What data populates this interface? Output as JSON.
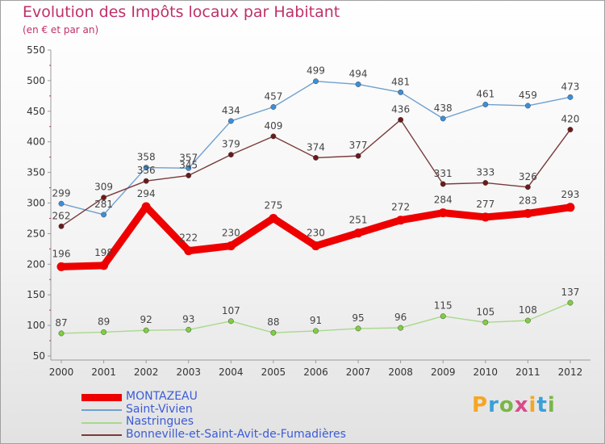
{
  "header": {
    "title": "Evolution des Impôts locaux par Habitant",
    "subtitle": "(en € et par an)"
  },
  "logo": {
    "text": "Proxiti",
    "colors": [
      "#f5a623",
      "#3aa0d8",
      "#7ab648",
      "#d94b8a",
      "#f5a623",
      "#3aa0d8",
      "#7ab648"
    ]
  },
  "chart_data": {
    "type": "line",
    "x": [
      "2000",
      "2001",
      "2002",
      "2003",
      "2004",
      "2005",
      "2006",
      "2007",
      "2008",
      "2009",
      "2010",
      "2011",
      "2012"
    ],
    "ylim": [
      50,
      550
    ],
    "yticks": [
      "50",
      "100",
      "150",
      "200",
      "250",
      "300",
      "350",
      "400",
      "450",
      "500",
      "550"
    ],
    "grid": false,
    "legend_position": "bottom-left",
    "series": [
      {
        "name": "Saint-Vivien",
        "color": "#6fa0cf",
        "marker": "#3a8fd9",
        "values": [
          299,
          281,
          358,
          357,
          434,
          457,
          499,
          494,
          481,
          438,
          461,
          459,
          473
        ]
      },
      {
        "name": "Nastringues",
        "color": "#a8d98a",
        "marker": "#7fcf3f",
        "values": [
          87,
          89,
          92,
          93,
          107,
          88,
          91,
          95,
          96,
          115,
          105,
          108,
          137
        ]
      },
      {
        "name": "Bonneville-et-Saint-Avit-de-Fumadières",
        "color": "#7a3a3a",
        "marker": "#6b1a1a",
        "values": [
          262,
          309,
          336,
          345,
          379,
          409,
          374,
          377,
          436,
          331,
          333,
          326,
          420
        ]
      },
      {
        "name": "MONTAZEAU",
        "color": "#ee0000",
        "marker": "#ee0000",
        "values": [
          196,
          198,
          294,
          222,
          230,
          275,
          230,
          251,
          272,
          284,
          277,
          283,
          293
        ]
      }
    ],
    "legend_order": [
      3,
      0,
      1,
      2
    ]
  }
}
